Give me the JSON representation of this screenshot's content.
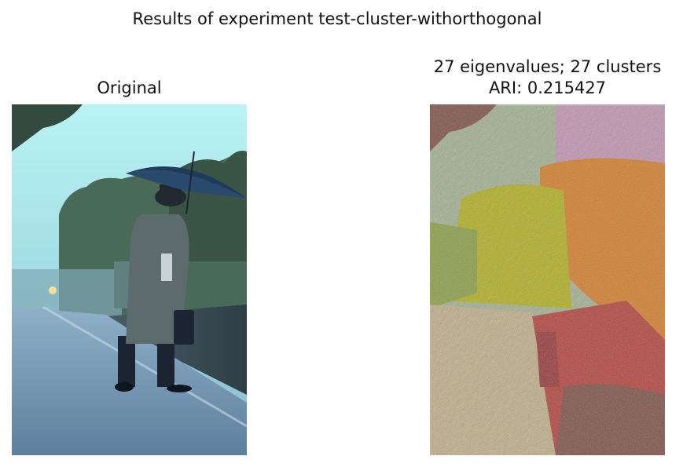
{
  "figure": {
    "suptitle": "Results of experiment test-cluster-withorthogonal"
  },
  "panels": [
    {
      "title": "Original",
      "image": "photo-man-with-umbrella-on-rainy-platform"
    },
    {
      "title_line1": "27 eigenvalues; 27 clusters",
      "title_line2": "ARI: 0.215427",
      "image": "cluster-label-map"
    }
  ],
  "colors": {
    "sky": "#aeeaf0",
    "trees": "#3f5b55",
    "platform": "#6b8fae",
    "coat": "#5b6a70",
    "umbrella": "#1f3a5a",
    "cluster_brown": "#8c564b",
    "cluster_pink": "#d9a5c6",
    "cluster_orange": "#f08a2a",
    "cluster_yellow": "#c7c41f",
    "cluster_tan": "#d8c39a",
    "cluster_red": "#d62728",
    "cluster_green": "#7fc97f"
  }
}
